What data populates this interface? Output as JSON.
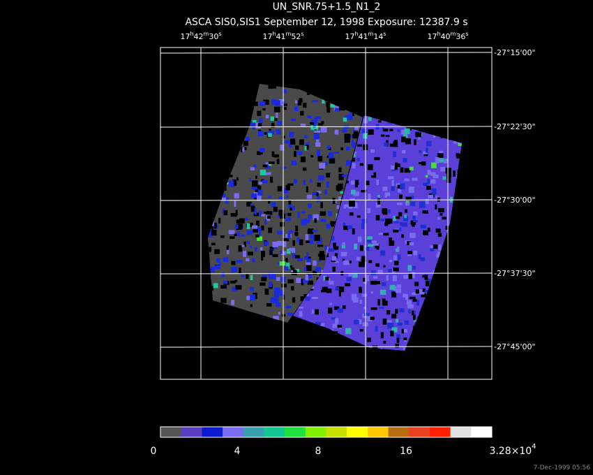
{
  "header": {
    "title": "UN_SNR.75+1.5_N1_2",
    "subtitle": "ASCA SIS0,SIS1 September 12, 1998 Exposure: 12387.9 s"
  },
  "ra_labels": [
    [
      "17",
      "h",
      "42",
      "m",
      "30",
      "s"
    ],
    [
      "17",
      "h",
      "41",
      "m",
      "52",
      "s"
    ],
    [
      "17",
      "h",
      "41",
      "m",
      "14",
      "s"
    ],
    [
      "17",
      "h",
      "40",
      "m",
      "36",
      "s"
    ]
  ],
  "dec_labels": [
    "-27°15'00\"",
    "-27°22'30\"",
    "-27°30'00\"",
    "-27°37'30\"",
    "-27°45'00\""
  ],
  "colorbar": {
    "labels": [
      [
        "0"
      ],
      [
        "4"
      ],
      [
        "8"
      ],
      [
        "16"
      ],
      [
        "3.28×10",
        "4"
      ]
    ]
  },
  "timestamp": "7-Dec-1999 05:56"
}
